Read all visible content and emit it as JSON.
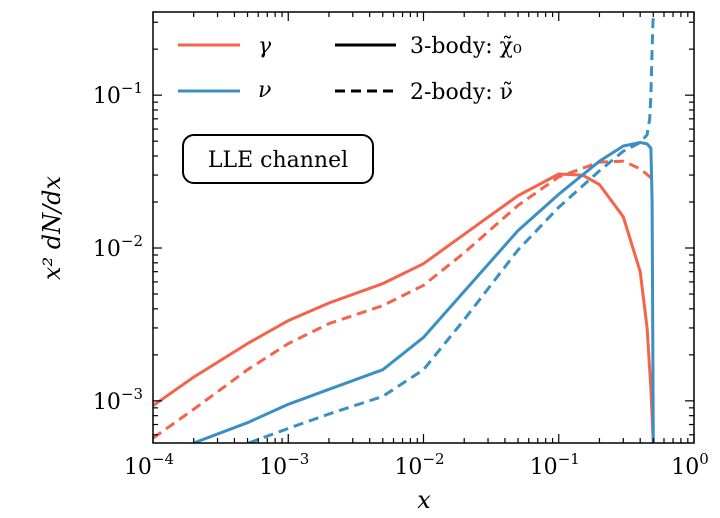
{
  "chart_data": {
    "type": "line",
    "xscale": "log",
    "yscale": "log",
    "xlim": [
      0.0001,
      1
    ],
    "ylim": [
      0.00053,
      0.35
    ],
    "xlabel": "x",
    "ylabel": "x² dN/dx",
    "xticks": [
      {
        "value": 0.0001,
        "base": "10",
        "exp": "−4"
      },
      {
        "value": 0.001,
        "base": "10",
        "exp": "−3"
      },
      {
        "value": 0.01,
        "base": "10",
        "exp": "−2"
      },
      {
        "value": 0.1,
        "base": "10",
        "exp": "−1"
      },
      {
        "value": 1,
        "base": "10",
        "exp": "0"
      }
    ],
    "yticks": [
      {
        "value": 0.001,
        "base": "10",
        "exp": "−3"
      },
      {
        "value": 0.01,
        "base": "10",
        "exp": "−2"
      },
      {
        "value": 0.1,
        "base": "10",
        "exp": "−1"
      }
    ],
    "legend_position": "top",
    "legend": [
      {
        "label": "γ",
        "color": "#f4634a",
        "style": "solid"
      },
      {
        "label": "ν",
        "color": "#3b8fc4",
        "style": "solid"
      },
      {
        "label": "3-body: χ̃₀",
        "color": "#000000",
        "style": "solid"
      },
      {
        "label": "2-body: ν̃",
        "color": "#000000",
        "style": "dashed"
      }
    ],
    "annotation": "LLE channel",
    "series": [
      {
        "particle": "γ",
        "decay": "3-body",
        "color": "#f4634a",
        "dash": "solid",
        "points": [
          [
            0.0001,
            0.00093
          ],
          [
            0.0002,
            0.00143
          ],
          [
            0.0005,
            0.00237
          ],
          [
            0.001,
            0.00335
          ],
          [
            0.002,
            0.00437
          ],
          [
            0.005,
            0.00585
          ],
          [
            0.01,
            0.0079
          ],
          [
            0.02,
            0.0123
          ],
          [
            0.05,
            0.022
          ],
          [
            0.1,
            0.0305
          ],
          [
            0.15,
            0.03
          ],
          [
            0.2,
            0.026
          ],
          [
            0.3,
            0.016
          ],
          [
            0.4,
            0.007
          ],
          [
            0.45,
            0.003
          ],
          [
            0.48,
            0.0012
          ],
          [
            0.5,
            0.00053
          ]
        ]
      },
      {
        "particle": "γ",
        "decay": "2-body",
        "color": "#f4634a",
        "dash": "dashed",
        "points": [
          [
            0.0001,
            0.00057
          ],
          [
            0.0002,
            0.00088
          ],
          [
            0.0005,
            0.0016
          ],
          [
            0.001,
            0.00237
          ],
          [
            0.002,
            0.0032
          ],
          [
            0.005,
            0.0042
          ],
          [
            0.01,
            0.0057
          ],
          [
            0.02,
            0.0093
          ],
          [
            0.05,
            0.019
          ],
          [
            0.1,
            0.0292
          ],
          [
            0.2,
            0.0365
          ],
          [
            0.3,
            0.037
          ],
          [
            0.4,
            0.033
          ],
          [
            0.5,
            0.028
          ]
        ]
      },
      {
        "particle": "ν",
        "decay": "3-body",
        "color": "#3b8fc4",
        "dash": "solid",
        "points": [
          [
            0.0002,
            0.00053
          ],
          [
            0.0005,
            0.00072
          ],
          [
            0.001,
            0.00095
          ],
          [
            0.002,
            0.00119
          ],
          [
            0.005,
            0.0016
          ],
          [
            0.01,
            0.0026
          ],
          [
            0.02,
            0.0052
          ],
          [
            0.05,
            0.013
          ],
          [
            0.1,
            0.0225
          ],
          [
            0.2,
            0.037
          ],
          [
            0.3,
            0.0465
          ],
          [
            0.4,
            0.049
          ],
          [
            0.45,
            0.048
          ],
          [
            0.48,
            0.045
          ],
          [
            0.49,
            0.02
          ],
          [
            0.5,
            0.00053
          ]
        ]
      },
      {
        "particle": "ν",
        "decay": "2-body",
        "color": "#3b8fc4",
        "dash": "dashed",
        "points": [
          [
            0.00051,
            0.00053
          ],
          [
            0.001,
            0.00066
          ],
          [
            0.002,
            0.00082
          ],
          [
            0.005,
            0.00107
          ],
          [
            0.01,
            0.0016
          ],
          [
            0.02,
            0.0034
          ],
          [
            0.05,
            0.0097
          ],
          [
            0.1,
            0.0185
          ],
          [
            0.2,
            0.032
          ],
          [
            0.3,
            0.043
          ],
          [
            0.4,
            0.049
          ],
          [
            0.45,
            0.055
          ],
          [
            0.47,
            0.07
          ],
          [
            0.48,
            0.1
          ],
          [
            0.49,
            0.2
          ],
          [
            0.5,
            0.35
          ]
        ]
      }
    ]
  }
}
